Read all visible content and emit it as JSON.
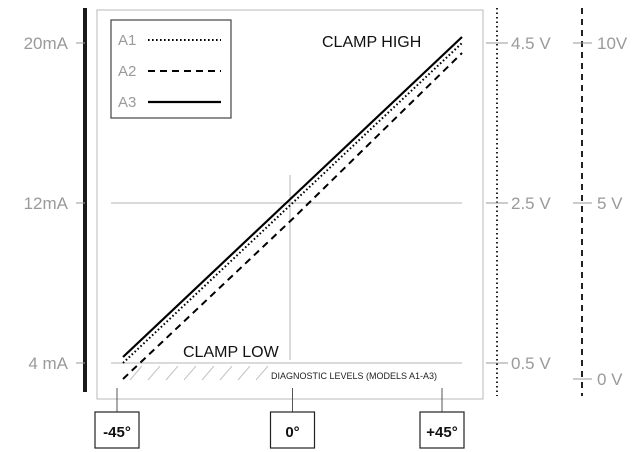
{
  "chart_data": {
    "type": "line",
    "x": [
      "-45°",
      "0°",
      "+45°"
    ],
    "x_values": [
      -45,
      0,
      45
    ],
    "series": [
      {
        "name": "A1",
        "style": "dotted",
        "values": [
          4,
          12,
          20
        ]
      },
      {
        "name": "A2",
        "style": "dashed",
        "values": [
          3.2,
          11.2,
          19.5
        ]
      },
      {
        "name": "A3",
        "style": "solid",
        "values": [
          4.3,
          12.3,
          20.3
        ]
      }
    ],
    "ylim": [
      3,
      21
    ],
    "xlim": [
      -45,
      45
    ],
    "y_left_ticks": [
      {
        "value": 20,
        "label": "20mA"
      },
      {
        "value": 12,
        "label": "12mA"
      },
      {
        "value": 4,
        "label": "4 mA"
      }
    ],
    "y_right_ticks": [
      {
        "value": 20,
        "label": "4.5 V"
      },
      {
        "value": 12,
        "label": "2.5 V"
      },
      {
        "value": 4,
        "label": "0.5 V"
      }
    ],
    "y_far_right_ticks": [
      {
        "value": 20,
        "label": "10V"
      },
      {
        "value": 12,
        "label": "5 V"
      },
      {
        "value": 3.2,
        "label": "0 V"
      }
    ],
    "x_ticks": [
      {
        "value": -45,
        "label": "-45°"
      },
      {
        "value": 0,
        "label": "0°"
      },
      {
        "value": 45,
        "label": "+45°"
      }
    ],
    "annotations": {
      "clamp_high": "CLAMP HIGH",
      "clamp_low": "CLAMP LOW",
      "diagnostic": "DIAGNOSTIC LEVELS (MODELS A1-A3)"
    },
    "legend_placement": "top-left",
    "grid": false,
    "colors": {
      "line": "#000000",
      "text": "#9a9a9a",
      "frame": "#b8b8b8"
    }
  }
}
